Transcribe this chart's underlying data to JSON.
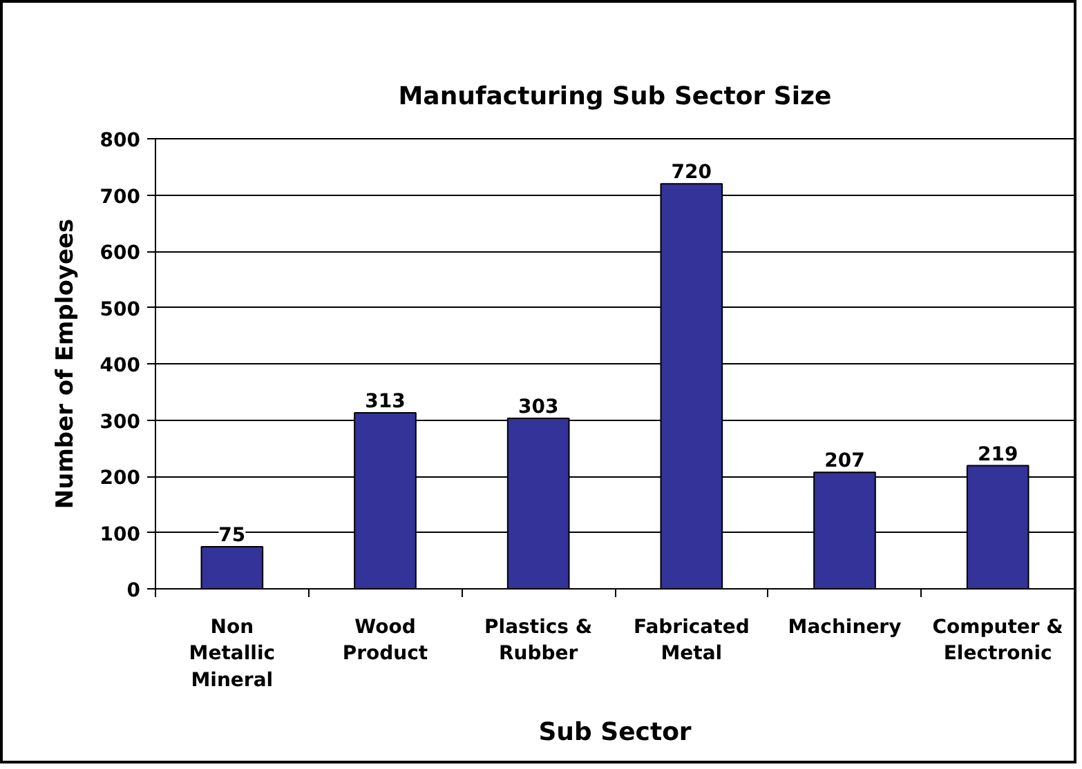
{
  "chart_data": {
    "type": "bar",
    "title": "Manufacturing Sub Sector Size",
    "xlabel": "Sub Sector",
    "ylabel": "Number of Employees",
    "categories": [
      "Non Metallic Mineral",
      "Wood Product",
      "Plastics & Rubber",
      "Fabricated Metal",
      "Machinery",
      "Computer & Electronic"
    ],
    "values": [
      75,
      313,
      303,
      720,
      207,
      219
    ],
    "color": "#333399",
    "ylim": [
      0,
      800
    ],
    "yticks": [
      0,
      100,
      200,
      300,
      400,
      500,
      600,
      700,
      800
    ],
    "grid": "y",
    "data_labels": true
  }
}
